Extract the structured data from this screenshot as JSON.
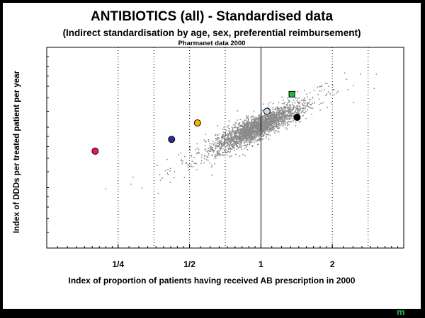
{
  "chart_data": {
    "type": "scatter",
    "title": "ANTIBIOTICS (all) - Standardised data",
    "subtitle": "(Indirect standardisation by age, sex, preferential reimbursement)",
    "source": "Pharmanet data 2000",
    "xlabel": "Index of proportion of patients having received AB prescription in 2000",
    "ylabel": "Index of DDDs per treated patient per year",
    "x_scale": "log",
    "xlim": [
      0.125,
      4
    ],
    "ylim": [
      0.25,
      2.5
    ],
    "xticks": [
      {
        "value": 0.25,
        "label": "1/4"
      },
      {
        "value": 0.5,
        "label": "1/2"
      },
      {
        "value": 1,
        "label": "1"
      },
      {
        "value": 2,
        "label": "2"
      }
    ],
    "reference_lines_dotted_x": [
      0.25,
      0.354,
      0.5,
      0.707,
      2,
      2.83
    ],
    "reference_line_solid_x": 1,
    "background_cloud": {
      "color": "#8a8a8a",
      "center": [
        1.0,
        1.0
      ],
      "note": "several thousand grey points"
    },
    "highlighted_points": [
      {
        "x": 0.2,
        "y": 0.76,
        "color": "#e8185a",
        "shape": "circle"
      },
      {
        "x": 0.42,
        "y": 0.87,
        "color": "#2b2f9e",
        "shape": "circle"
      },
      {
        "x": 0.54,
        "y": 1.05,
        "color": "#f4b400",
        "shape": "circle"
      },
      {
        "x": 1.06,
        "y": 1.2,
        "color": "#c6dcf0",
        "shape": "circle"
      },
      {
        "x": 1.42,
        "y": 1.12,
        "color": "#000000",
        "shape": "circle"
      },
      {
        "x": 1.35,
        "y": 1.46,
        "color": "#22b830",
        "shape": "square"
      }
    ]
  },
  "logo_text": "m"
}
